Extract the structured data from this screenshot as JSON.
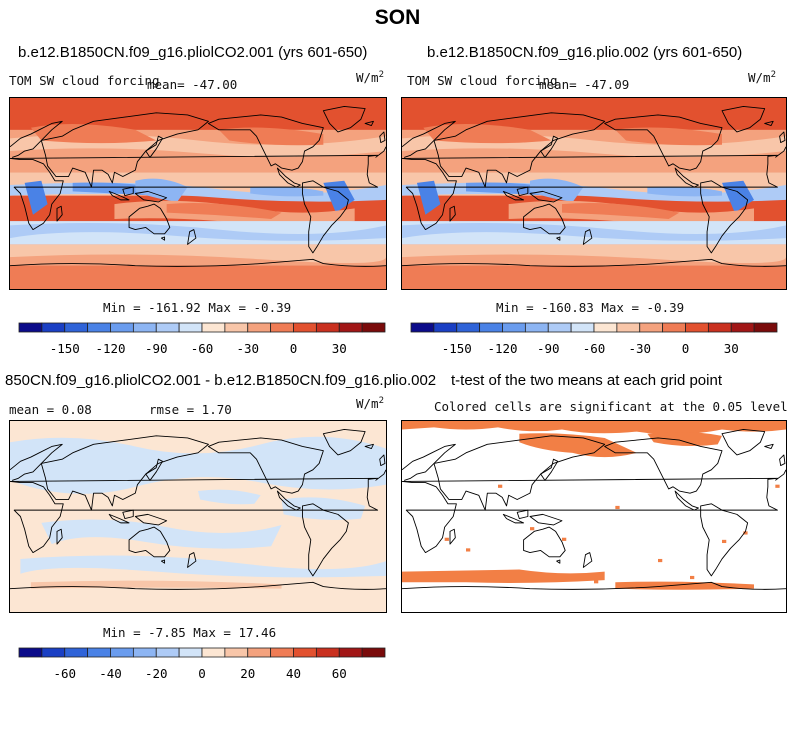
{
  "title": "SON",
  "panels": [
    {
      "id": "p1",
      "title": "b.e12.B1850CN.f09_g16.pliolCO2.001 (yrs 601-650)",
      "left_label": "TOM SW cloud forcing",
      "mean_text": "mean= -47.00",
      "units_base": "W/m",
      "units_exp": "2",
      "minmax": "Min = -161.92 Max =  -0.39"
    },
    {
      "id": "p2",
      "title": "b.e12.B1850CN.f09_g16.plio.002 (yrs 601-650)",
      "left_label": "TOM SW cloud forcing",
      "mean_text": "mean= -47.09",
      "units_base": "W/m",
      "units_exp": "2",
      "minmax": "Min = -160.83 Max =  -0.39"
    },
    {
      "id": "p3",
      "title": "850CN.f09_g16.pliolCO2.001 - b.e12.B1850CN.f09_g16.plio.002",
      "mean_text": "mean =    0.08",
      "rmse_text": "rmse =    1.70",
      "units_base": "W/m",
      "units_exp": "2",
      "minmax": "Min =  -7.85 Max =  17.46"
    },
    {
      "id": "p4",
      "title": "t-test of the two means at each grid point",
      "subtitle": "Colored cells are significant at the 0.05 level"
    }
  ],
  "chart_data": [
    {
      "type": "heatmap",
      "field": "TOM SW cloud forcing",
      "case": "b.e12.B1850CN.f09_g16.pliolCO2.001 (yrs 601-650)",
      "season": "SON",
      "mean": -47.0,
      "min": -161.92,
      "max": -0.39,
      "units": "W/m2",
      "levels": [
        -165,
        -150,
        -135,
        -120,
        -105,
        -90,
        -75,
        -60,
        -45,
        -30,
        -15,
        0,
        15,
        30,
        45
      ],
      "tick_labels": [
        "-150",
        "-120",
        "-90",
        "-60",
        "-30",
        "0",
        "30"
      ],
      "colors": [
        "#0b0b8a",
        "#1a3fc4",
        "#2f63d8",
        "#4a82e6",
        "#6a9cee",
        "#8db5f3",
        "#aecbf6",
        "#d2e4f8",
        "#fce6d3",
        "#f8c6a9",
        "#f4a27e",
        "#ef7c55",
        "#e2512f",
        "#c9301f",
        "#a11616",
        "#7a0b0b"
      ]
    },
    {
      "type": "heatmap",
      "field": "TOM SW cloud forcing",
      "case": "b.e12.B1850CN.f09_g16.plio.002 (yrs 601-650)",
      "season": "SON",
      "mean": -47.09,
      "min": -160.83,
      "max": -0.39,
      "units": "W/m2",
      "levels": [
        -165,
        -150,
        -135,
        -120,
        -105,
        -90,
        -75,
        -60,
        -45,
        -30,
        -15,
        0,
        15,
        30,
        45
      ],
      "tick_labels": [
        "-150",
        "-120",
        "-90",
        "-60",
        "-30",
        "0",
        "30"
      ],
      "colors": [
        "#0b0b8a",
        "#1a3fc4",
        "#2f63d8",
        "#4a82e6",
        "#6a9cee",
        "#8db5f3",
        "#aecbf6",
        "#d2e4f8",
        "#fce6d3",
        "#f8c6a9",
        "#f4a27e",
        "#ef7c55",
        "#e2512f",
        "#c9301f",
        "#a11616",
        "#7a0b0b"
      ]
    },
    {
      "type": "heatmap",
      "field": "difference",
      "case": "850CN.f09_g16.pliolCO2.001 - b.e12.B1850CN.f09_g16.plio.002",
      "season": "SON",
      "mean": 0.08,
      "rmse": 1.7,
      "min": -7.85,
      "max": 17.46,
      "units": "W/m2",
      "levels": [
        -70,
        -60,
        -50,
        -40,
        -30,
        -20,
        -10,
        0,
        10,
        20,
        30,
        40,
        50,
        60,
        70
      ],
      "tick_labels": [
        "-60",
        "-40",
        "-20",
        "0",
        "20",
        "40",
        "60"
      ],
      "colors": [
        "#0b0b8a",
        "#1a3fc4",
        "#2f63d8",
        "#4a82e6",
        "#6a9cee",
        "#8db5f3",
        "#aecbf6",
        "#d2e4f8",
        "#fce6d3",
        "#f8c6a9",
        "#f4a27e",
        "#ef7c55",
        "#e2512f",
        "#c9301f",
        "#a11616",
        "#7a0b0b"
      ]
    },
    {
      "type": "heatmap",
      "field": "t-test significance",
      "description_shown": "Colored cells are significant at the 0.05 level",
      "significance_level": 0.05,
      "significant_color": "#f27f45"
    }
  ],
  "colors": {
    "land_outline": "#000000",
    "panel_border": "#000000"
  }
}
